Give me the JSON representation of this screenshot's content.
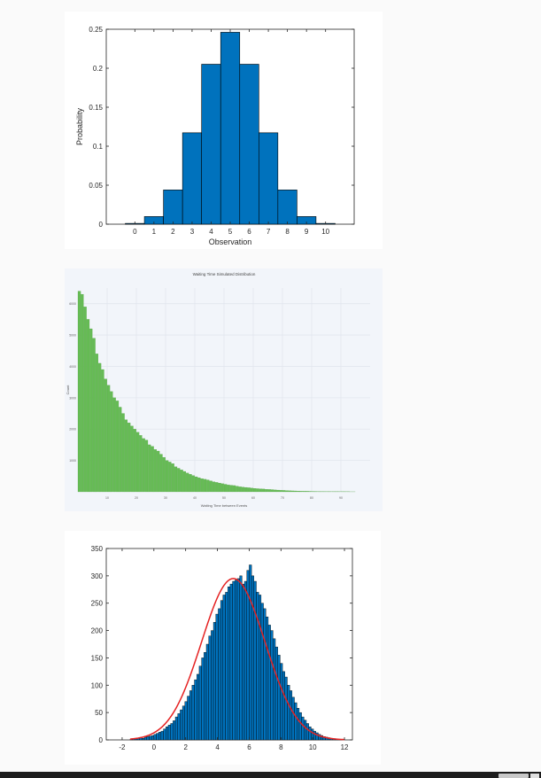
{
  "chart_data": [
    {
      "type": "bar",
      "title": "",
      "xlabel": "Observation",
      "ylabel": "Probability",
      "categories": [
        0,
        1,
        2,
        3,
        4,
        5,
        6,
        7,
        8,
        9,
        10
      ],
      "values": [
        0.001,
        0.0098,
        0.0439,
        0.1172,
        0.2051,
        0.2461,
        0.2051,
        0.1172,
        0.0439,
        0.0098,
        0.001
      ],
      "xlim": [
        -1.5,
        11.5
      ],
      "ylim": [
        0,
        0.25
      ],
      "yticks": [
        "0",
        "0.05",
        "0.1",
        "0.15",
        "0.2",
        "0.25"
      ],
      "xticks": [
        "0",
        "1",
        "2",
        "3",
        "4",
        "5",
        "6",
        "7",
        "8",
        "9",
        "10"
      ],
      "bar_color": "#0072bd",
      "grid": false
    },
    {
      "type": "bar",
      "title": "Waiting Time Simulated Distribution",
      "xlabel": "Waiting Time between Events",
      "ylabel": "Count",
      "bin_width": 1,
      "bin_start": 0,
      "values": [
        6400,
        6300,
        5900,
        5500,
        5200,
        4900,
        4400,
        4100,
        3900,
        3600,
        3400,
        3200,
        3000,
        2900,
        2700,
        2500,
        2300,
        2200,
        2100,
        2000,
        1900,
        1800,
        1700,
        1650,
        1500,
        1450,
        1350,
        1300,
        1200,
        1100,
        1000,
        950,
        900,
        800,
        750,
        700,
        650,
        600,
        560,
        520,
        480,
        450,
        420,
        400,
        380,
        350,
        320,
        300,
        280,
        260,
        240,
        220,
        210,
        200,
        180,
        160,
        150,
        140,
        130,
        120,
        110,
        100,
        95,
        90,
        80,
        75,
        70,
        60,
        55,
        50,
        45,
        40,
        35,
        30,
        28,
        25,
        22,
        20,
        18,
        15,
        13,
        12,
        10,
        9,
        8,
        7,
        6,
        5,
        5,
        4,
        4,
        3,
        3,
        2,
        2
      ],
      "ylim": [
        0,
        6500
      ],
      "xlim": [
        0,
        100
      ],
      "xticks": [
        "10",
        "20",
        "30",
        "40",
        "50",
        "60",
        "70",
        "80",
        "90"
      ],
      "yticks": [
        "1000",
        "2000",
        "3000",
        "4000",
        "5000",
        "6000"
      ],
      "bar_color": "#66bb55",
      "grid": true
    },
    {
      "type": "bar",
      "title": "",
      "xlabel": "",
      "ylabel": "",
      "bin_start": -1.5,
      "bin_width": 0.15,
      "values": [
        1,
        2,
        2,
        3,
        4,
        3,
        5,
        6,
        7,
        8,
        10,
        12,
        14,
        16,
        20,
        24,
        27,
        30,
        35,
        42,
        48,
        55,
        62,
        70,
        80,
        90,
        100,
        110,
        120,
        135,
        150,
        160,
        175,
        190,
        200,
        215,
        230,
        240,
        255,
        265,
        270,
        280,
        285,
        290,
        292,
        295,
        300,
        285,
        290,
        310,
        320,
        300,
        290,
        270,
        265,
        250,
        240,
        225,
        210,
        200,
        185,
        170,
        155,
        140,
        125,
        115,
        100,
        90,
        78,
        68,
        58,
        50,
        42,
        36,
        30,
        24,
        20,
        16,
        13,
        10,
        8,
        6,
        5,
        4,
        3,
        2,
        1,
        1,
        1
      ],
      "fit_curve": {
        "mean": 5,
        "std": 2,
        "peak": 295,
        "color": "#e52222"
      },
      "xlim": [
        -3,
        12.5
      ],
      "ylim": [
        0,
        350
      ],
      "xticks": [
        "-2",
        "0",
        "2",
        "4",
        "6",
        "8",
        "10",
        "12"
      ],
      "yticks": [
        "0",
        "50",
        "100",
        "150",
        "200",
        "250",
        "300",
        "350"
      ],
      "bar_color": "#0072bd",
      "grid": false
    }
  ]
}
